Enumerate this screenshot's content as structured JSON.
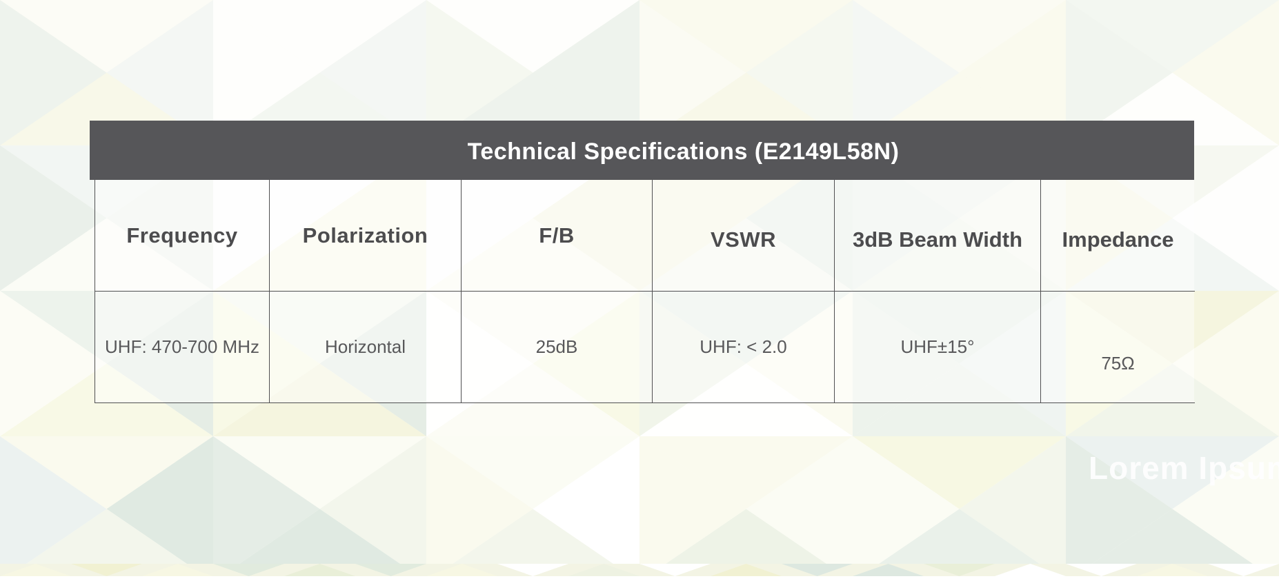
{
  "theme": {
    "banner_bg": "#565659",
    "banner_text": "#ffffff",
    "header_text": "#4c4c4e",
    "cell_text": "#58585a",
    "grid_line": "#4f4f51",
    "watermark_color": "#ffffff"
  },
  "page": {
    "watermark": "Lorem Ipsum"
  },
  "table": {
    "title": "Technical Specifications (E2149L58N)",
    "columns": [
      "Frequency",
      "Polarization",
      "F/B",
      "VSWR",
      "3dB Beam Width",
      "Impedance"
    ],
    "rows": [
      [
        "UHF: 470-700 MHz",
        "Horizontal",
        "25dB",
        "UHF: < 2.0",
        "UHF±15°",
        "75Ω"
      ]
    ]
  }
}
